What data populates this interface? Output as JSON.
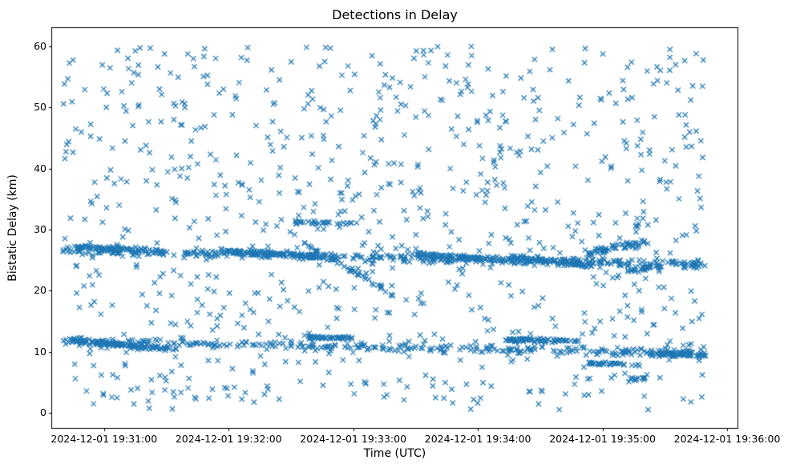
{
  "chart_data": {
    "type": "scatter",
    "title": "Detections in Delay",
    "xlabel": "Time (UTC)",
    "ylabel": "Bistatic Delay (km)",
    "marker": "x",
    "marker_color": "#1f77b4",
    "grid": false,
    "x_domain_seconds": [
      -25,
      305
    ],
    "x_ticks": [
      {
        "t": 0,
        "label": "2024-12-01 19:31:00"
      },
      {
        "t": 60,
        "label": "2024-12-01 19:32:00"
      },
      {
        "t": 120,
        "label": "2024-12-01 19:33:00"
      },
      {
        "t": 180,
        "label": "2024-12-01 19:34:00"
      },
      {
        "t": 240,
        "label": "2024-12-01 19:35:00"
      },
      {
        "t": 300,
        "label": "2024-12-01 19:36:00"
      }
    ],
    "ylim": [
      -2.5,
      63
    ],
    "y_ticks": [
      0,
      10,
      20,
      30,
      40,
      50,
      60
    ],
    "bands": [
      {
        "name": "uniform-clutter",
        "mode": "uniform",
        "n": 880,
        "t": [
          -20,
          290
        ],
        "y": [
          0.5,
          60.0
        ]
      },
      {
        "name": "track-upper",
        "mode": "linear",
        "n": 430,
        "t": [
          -20,
          290
        ],
        "y_start": 26.6,
        "y_end": 24.3,
        "jitter": 0.55
      },
      {
        "name": "track-upper-dense-1",
        "mode": "linear",
        "n": 70,
        "t": [
          -15,
          30
        ],
        "y_start": 27.2,
        "y_end": 26.3,
        "jitter": 0.3
      },
      {
        "name": "track-upper-dense-2",
        "mode": "linear",
        "n": 90,
        "t": [
          58,
          105
        ],
        "y_start": 26.4,
        "y_end": 25.6,
        "jitter": 0.22
      },
      {
        "name": "track-upper-dense-3",
        "mode": "linear",
        "n": 80,
        "t": [
          148,
          188
        ],
        "y_start": 26.0,
        "y_end": 25.1,
        "jitter": 0.25
      },
      {
        "name": "track-upper-dense-4",
        "mode": "linear",
        "n": 80,
        "t": [
          195,
          235
        ],
        "y_start": 25.5,
        "y_end": 24.1,
        "jitter": 0.3
      },
      {
        "name": "track-upper-dense-5",
        "mode": "linear",
        "n": 55,
        "t": [
          233,
          262
        ],
        "y_start": 26.1,
        "y_end": 27.9,
        "jitter": 0.45
      },
      {
        "name": "track-lower",
        "mode": "linear",
        "n": 310,
        "t": [
          -20,
          290
        ],
        "y_start": 11.6,
        "y_end": 9.8,
        "jitter": 0.5
      },
      {
        "name": "track-lower-dense-1",
        "mode": "linear",
        "n": 100,
        "t": [
          -15,
          35
        ],
        "y_start": 11.9,
        "y_end": 10.2,
        "jitter": 0.3
      },
      {
        "name": "track-lower-dense-2",
        "mode": "linear",
        "n": 45,
        "t": [
          98,
          120
        ],
        "y_start": 12.3,
        "y_end": 12.2,
        "jitter": 0.2
      },
      {
        "name": "track-lower-dense-3",
        "mode": "linear",
        "n": 75,
        "t": [
          193,
          230
        ],
        "y_start": 12.0,
        "y_end": 11.7,
        "jitter": 0.25
      },
      {
        "name": "track-lower-dense-4",
        "mode": "linear",
        "n": 55,
        "t": [
          263,
          290
        ],
        "y_start": 9.6,
        "y_end": 9.4,
        "jitter": 0.25
      },
      {
        "name": "descending-segment",
        "mode": "linear",
        "n": 45,
        "t": [
          95,
          140
        ],
        "y_start": 28.0,
        "y_end": 19.2,
        "jitter": 0.3
      },
      {
        "name": "segment-31",
        "mode": "linear",
        "n": 30,
        "t": [
          92,
          122
        ],
        "y_start": 31.2,
        "y_end": 31.0,
        "jitter": 0.2
      },
      {
        "name": "segment-8-right",
        "mode": "linear",
        "n": 35,
        "t": [
          232,
          258
        ],
        "y_start": 8.1,
        "y_end": 7.9,
        "jitter": 0.2
      },
      {
        "name": "segment-23-right",
        "mode": "linear",
        "n": 28,
        "t": [
          252,
          268
        ],
        "y_start": 23.3,
        "y_end": 23.7,
        "jitter": 0.3
      },
      {
        "name": "segment-5-cluster",
        "mode": "linear",
        "n": 14,
        "t": [
          252,
          262
        ],
        "y_start": 5.3,
        "y_end": 5.8,
        "jitter": 0.3
      }
    ]
  }
}
